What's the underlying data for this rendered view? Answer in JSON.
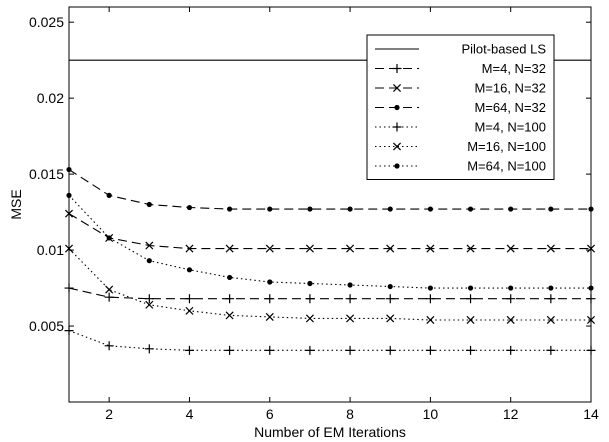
{
  "chart_data": {
    "type": "line",
    "xlabel": "Number of EM Iterations",
    "ylabel": "MSE",
    "xlim": [
      1,
      14
    ],
    "ylim": [
      0,
      0.026
    ],
    "grid": false,
    "legend_position": "top-right",
    "x_ticks": [
      2,
      4,
      6,
      8,
      10,
      12,
      14
    ],
    "x_tick_labels": [
      "2",
      "4",
      "6",
      "8",
      "10",
      "12",
      "14"
    ],
    "y_ticks": [
      0.005,
      0.01,
      0.015,
      0.02,
      0.025
    ],
    "y_tick_labels": [
      "0.005",
      "0.01",
      "0.015",
      "0.02",
      "0.025"
    ],
    "x": [
      1,
      2,
      3,
      4,
      5,
      6,
      7,
      8,
      9,
      10,
      11,
      12,
      13,
      14
    ],
    "series": [
      {
        "name": "Pilot-based LS",
        "line": "solid",
        "marker": "none",
        "values": [
          0.0225,
          0.0225,
          0.0225,
          0.0225,
          0.0225,
          0.0225,
          0.0225,
          0.0225,
          0.0225,
          0.0225,
          0.0225,
          0.0225,
          0.0225,
          0.0225
        ]
      },
      {
        "name": "M=4, N=32",
        "line": "dashed",
        "marker": "plus",
        "values": [
          0.0075,
          0.0069,
          0.0068,
          0.0068,
          0.0068,
          0.0068,
          0.0068,
          0.0068,
          0.0068,
          0.0068,
          0.0068,
          0.0068,
          0.0068,
          0.0068
        ]
      },
      {
        "name": "M=16, N=32",
        "line": "dashed",
        "marker": "x",
        "values": [
          0.0124,
          0.0108,
          0.0103,
          0.0101,
          0.0101,
          0.0101,
          0.0101,
          0.0101,
          0.0101,
          0.0101,
          0.0101,
          0.0101,
          0.0101,
          0.0101
        ]
      },
      {
        "name": "M=64, N=32",
        "line": "dashed",
        "marker": "dot",
        "values": [
          0.0153,
          0.0136,
          0.013,
          0.0128,
          0.0127,
          0.0127,
          0.0127,
          0.0127,
          0.0127,
          0.0127,
          0.0127,
          0.0127,
          0.0127,
          0.0127
        ]
      },
      {
        "name": "M=4, N=100",
        "line": "dotted",
        "marker": "plus",
        "values": [
          0.0047,
          0.0037,
          0.0035,
          0.0034,
          0.0034,
          0.0034,
          0.0034,
          0.0034,
          0.0034,
          0.0034,
          0.0034,
          0.0034,
          0.0034,
          0.0034
        ]
      },
      {
        "name": "M=16, N=100",
        "line": "dotted",
        "marker": "x",
        "values": [
          0.0101,
          0.0074,
          0.0064,
          0.006,
          0.0057,
          0.0056,
          0.0055,
          0.0055,
          0.0055,
          0.0054,
          0.0054,
          0.0054,
          0.0054,
          0.0054
        ]
      },
      {
        "name": "M=64, N=100",
        "line": "dotted",
        "marker": "dot",
        "values": [
          0.0136,
          0.0108,
          0.0093,
          0.0087,
          0.0082,
          0.0079,
          0.0078,
          0.0077,
          0.0076,
          0.0075,
          0.0075,
          0.0075,
          0.0075,
          0.0075
        ]
      }
    ]
  }
}
